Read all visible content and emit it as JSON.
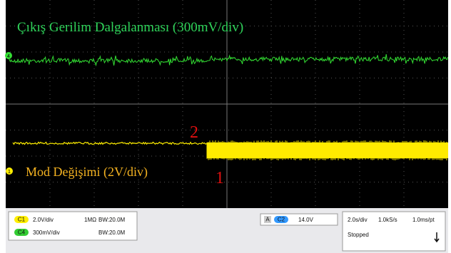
{
  "screen": {
    "channel_markers": {
      "c4": "4",
      "c1": "1"
    },
    "annotations": {
      "top": "Çıkış Gerilim Dalgalanması (300mV/div)",
      "bottom": "Mod Değişimi (2V/div)",
      "point_2": "2",
      "point_1": "1"
    },
    "status": {
      "ch1": {
        "badge": "C1",
        "scale": "2.0V/div",
        "impedance": "1MΩ",
        "bandwidth": "BW:20.0M"
      },
      "ch4": {
        "badge": "C4",
        "scale": "300mV/div",
        "bandwidth": "BW:20.0M"
      },
      "trigger": {
        "mode": "A",
        "badge": "C2",
        "level": "14.0V"
      },
      "timebase": {
        "scale": "2.0s/div",
        "rate": "1.0kS/s",
        "resolution": "1.0ms/pt",
        "state": "Stopped"
      }
    }
  }
}
